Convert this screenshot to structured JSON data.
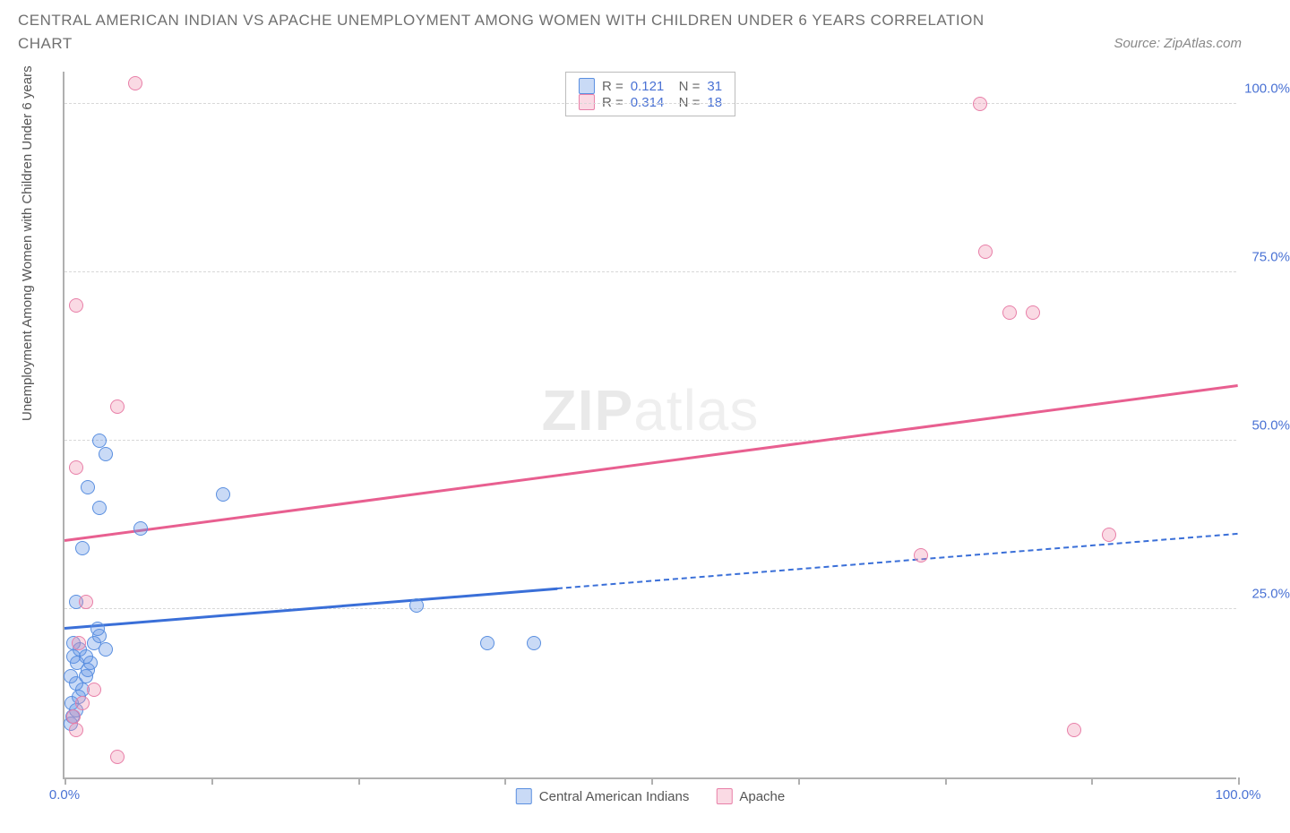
{
  "title": "CENTRAL AMERICAN INDIAN VS APACHE UNEMPLOYMENT AMONG WOMEN WITH CHILDREN UNDER 6 YEARS CORRELATION CHART",
  "source": "Source: ZipAtlas.com",
  "ylabel": "Unemployment Among Women with Children Under 6 years",
  "watermark_bold": "ZIP",
  "watermark_light": "atlas",
  "chart": {
    "type": "scatter",
    "xlim": [
      0,
      100
    ],
    "ylim": [
      0,
      105
    ],
    "x_ticks": [
      0,
      12.5,
      25,
      37.5,
      50,
      62.5,
      75,
      87.5,
      100
    ],
    "y_gridlines": [
      25,
      50,
      75,
      100
    ],
    "x_tick_labels": {
      "0": "0.0%",
      "100": "100.0%"
    },
    "y_tick_labels": {
      "25": "25.0%",
      "50": "50.0%",
      "75": "75.0%",
      "100": "100.0%"
    },
    "background_color": "#ffffff",
    "grid_color": "#d8d8d8",
    "axis_color": "#b0b0b0",
    "tick_label_color": "#4a72d4",
    "marker_radius": 8,
    "series": [
      {
        "name": "Central American Indians",
        "key": "cai",
        "fill": "rgba(100,150,230,0.35)",
        "stroke": "#5a8fe0",
        "trend_color": "#3a6fd8",
        "R": "0.121",
        "N": "31",
        "trend": {
          "x1": 0,
          "y1": 22,
          "x2": 100,
          "y2": 36,
          "solid_until_x": 42
        },
        "points": [
          [
            0.5,
            8
          ],
          [
            0.7,
            9
          ],
          [
            1.0,
            10
          ],
          [
            1.2,
            12
          ],
          [
            1.5,
            13
          ],
          [
            1.0,
            14
          ],
          [
            1.8,
            15
          ],
          [
            2.0,
            16
          ],
          [
            2.2,
            17
          ],
          [
            0.8,
            18
          ],
          [
            1.3,
            19
          ],
          [
            2.5,
            20
          ],
          [
            3.0,
            21
          ],
          [
            3.5,
            19
          ],
          [
            2.8,
            22
          ],
          [
            1.0,
            26
          ],
          [
            0.5,
            15
          ],
          [
            0.6,
            11
          ],
          [
            1.5,
            34
          ],
          [
            2.0,
            43
          ],
          [
            3.0,
            40
          ],
          [
            3.5,
            48
          ],
          [
            3.0,
            50
          ],
          [
            6.5,
            37
          ],
          [
            13.5,
            42
          ],
          [
            30.0,
            25.5
          ],
          [
            36.0,
            20
          ],
          [
            40.0,
            20
          ],
          [
            0.8,
            20
          ],
          [
            1.8,
            18
          ],
          [
            1.1,
            17
          ]
        ]
      },
      {
        "name": "Apache",
        "key": "apache",
        "fill": "rgba(240,140,170,0.32)",
        "stroke": "#e87fa8",
        "trend_color": "#e85f90",
        "R": "0.314",
        "N": "18",
        "trend": {
          "x1": 0,
          "y1": 35,
          "x2": 100,
          "y2": 58,
          "solid_until_x": 100
        },
        "points": [
          [
            1.0,
            7
          ],
          [
            0.8,
            9
          ],
          [
            1.5,
            11
          ],
          [
            2.5,
            13
          ],
          [
            4.5,
            3
          ],
          [
            1.2,
            20
          ],
          [
            1.8,
            26
          ],
          [
            1.0,
            46
          ],
          [
            4.5,
            55
          ],
          [
            1.0,
            70
          ],
          [
            6.0,
            103
          ],
          [
            73.0,
            33
          ],
          [
            78.0,
            100
          ],
          [
            78.5,
            78
          ],
          [
            80.5,
            69
          ],
          [
            82.5,
            69
          ],
          [
            89.0,
            36
          ],
          [
            86.0,
            7
          ]
        ]
      }
    ]
  },
  "legend_stats": {
    "rows": [
      {
        "swatch_fill": "rgba(100,150,230,0.35)",
        "swatch_stroke": "#5a8fe0",
        "r_label": "R =",
        "r_val": "0.121",
        "n_label": "N =",
        "n_val": "31"
      },
      {
        "swatch_fill": "rgba(240,140,170,0.32)",
        "swatch_stroke": "#e87fa8",
        "r_label": "R =",
        "r_val": "0.314",
        "n_label": "N =",
        "n_val": "18"
      }
    ]
  },
  "legend_bottom": [
    {
      "swatch_fill": "rgba(100,150,230,0.35)",
      "swatch_stroke": "#5a8fe0",
      "label": "Central American Indians"
    },
    {
      "swatch_fill": "rgba(240,140,170,0.32)",
      "swatch_stroke": "#e87fa8",
      "label": "Apache"
    }
  ]
}
